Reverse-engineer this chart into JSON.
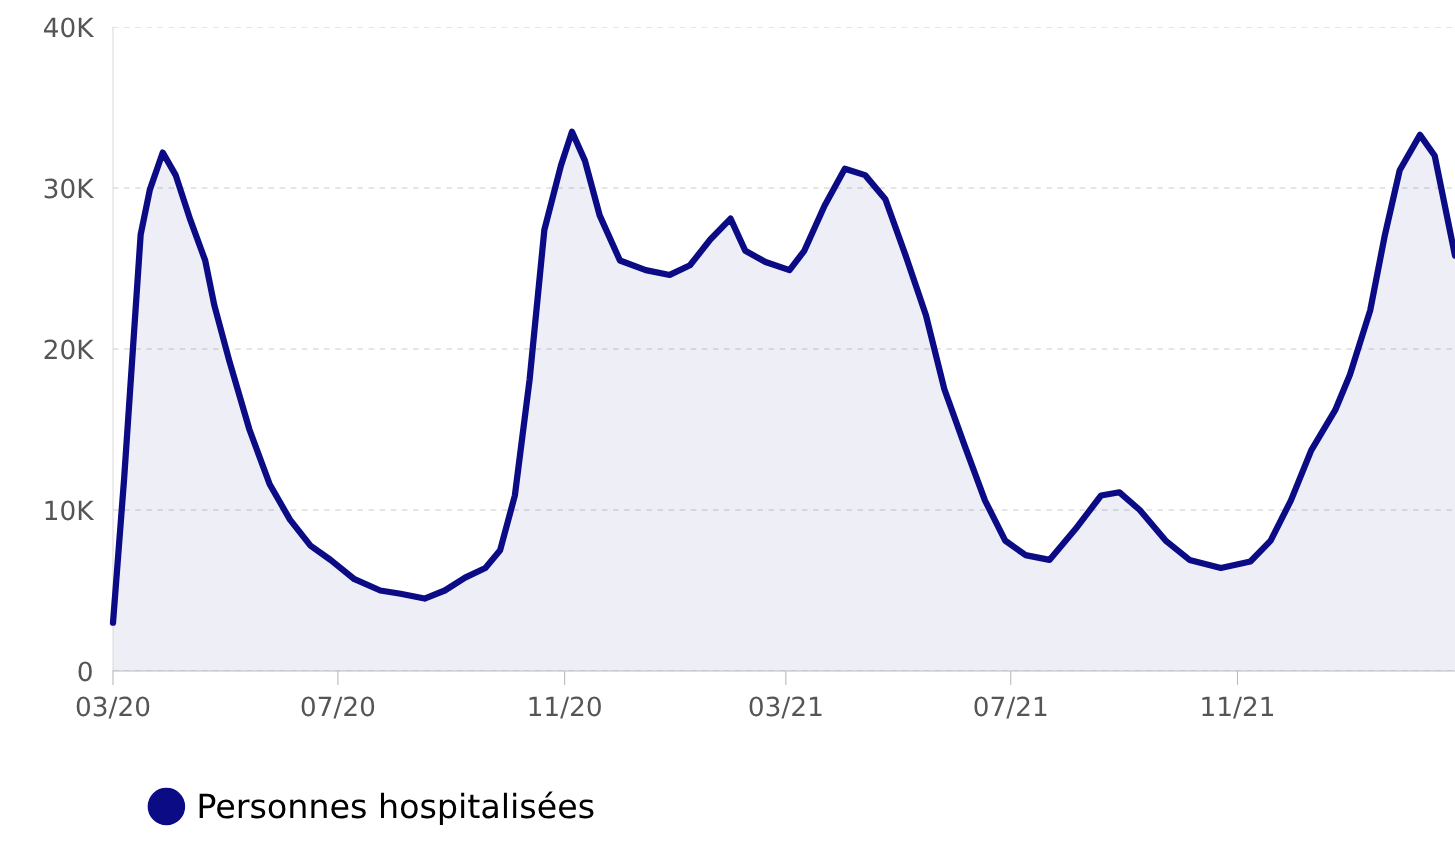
{
  "chart_data": {
    "type": "area",
    "x": [
      "2020-03-01",
      "2020-03-07",
      "2020-03-16",
      "2020-03-21",
      "2020-03-28",
      "2020-04-04",
      "2020-04-12",
      "2020-04-20",
      "2020-04-25",
      "2020-05-03",
      "2020-05-14",
      "2020-05-25",
      "2020-06-05",
      "2020-06-16",
      "2020-06-27",
      "2020-07-10",
      "2020-07-24",
      "2020-08-04",
      "2020-08-17",
      "2020-08-28",
      "2020-09-08",
      "2020-09-19",
      "2020-09-27",
      "2020-10-05",
      "2020-10-13",
      "2020-10-21",
      "2020-10-30",
      "2020-11-05",
      "2020-11-12",
      "2020-11-20",
      "2020-12-01",
      "2020-12-15",
      "2020-12-28",
      "2021-01-08",
      "2021-01-19",
      "2021-01-30",
      "2021-02-07",
      "2021-02-18",
      "2021-03-03",
      "2021-03-11",
      "2021-03-22",
      "2021-04-02",
      "2021-04-13",
      "2021-04-24",
      "2021-05-05",
      "2021-05-16",
      "2021-05-26",
      "2021-06-06",
      "2021-06-17",
      "2021-06-28",
      "2021-07-09",
      "2021-07-22",
      "2021-08-05",
      "2021-08-19",
      "2021-08-29",
      "2021-09-09",
      "2021-09-23",
      "2021-10-06",
      "2021-10-23",
      "2021-11-08",
      "2021-11-19",
      "2021-11-30",
      "2021-12-11",
      "2021-12-24",
      "2022-01-01",
      "2022-01-12",
      "2022-01-20",
      "2022-01-28",
      "2022-02-08",
      "2022-02-16",
      "2022-02-27"
    ],
    "series": [
      {
        "name": "Personnes hospitalisées",
        "color": "#0b0b86",
        "values": [
          3000,
          11900,
          27100,
          29900,
          32200,
          30800,
          28000,
          25500,
          22700,
          19300,
          15000,
          11600,
          9400,
          7800,
          6900,
          5700,
          5000,
          4800,
          4500,
          5000,
          5800,
          6400,
          7500,
          10900,
          18100,
          27400,
          31400,
          33500,
          31700,
          28300,
          25500,
          24900,
          24600,
          25200,
          26800,
          28100,
          26100,
          25400,
          24900,
          26100,
          28900,
          31200,
          30800,
          29300,
          25800,
          22100,
          17500,
          14000,
          10600,
          8100,
          7200,
          6900,
          8800,
          10900,
          11100,
          10000,
          8100,
          6900,
          6400,
          6800,
          8100,
          10600,
          13700,
          16200,
          18400,
          22400,
          27100,
          31100,
          33300,
          32000,
          25800
        ]
      }
    ],
    "xlim": [
      "2020-03-01",
      "2022-02-27"
    ],
    "xticks": [
      {
        "value": "2020-03-01",
        "label": "03/20"
      },
      {
        "value": "2020-07-01",
        "label": "07/20"
      },
      {
        "value": "2020-11-01",
        "label": "11/20"
      },
      {
        "value": "2021-03-01",
        "label": "03/21"
      },
      {
        "value": "2021-07-01",
        "label": "07/21"
      },
      {
        "value": "2021-11-01",
        "label": "11/21"
      }
    ],
    "ylim": [
      0,
      40000
    ],
    "yticks": [
      0,
      {
        "value": 10000,
        "label": "10K"
      },
      {
        "value": 20000,
        "label": "20K"
      },
      {
        "value": 30000,
        "label": "30K"
      },
      {
        "value": 40000,
        "label": "40K"
      }
    ],
    "grid": "y",
    "legend": "bottom left",
    "marker": "none",
    "line_style": "solid"
  }
}
